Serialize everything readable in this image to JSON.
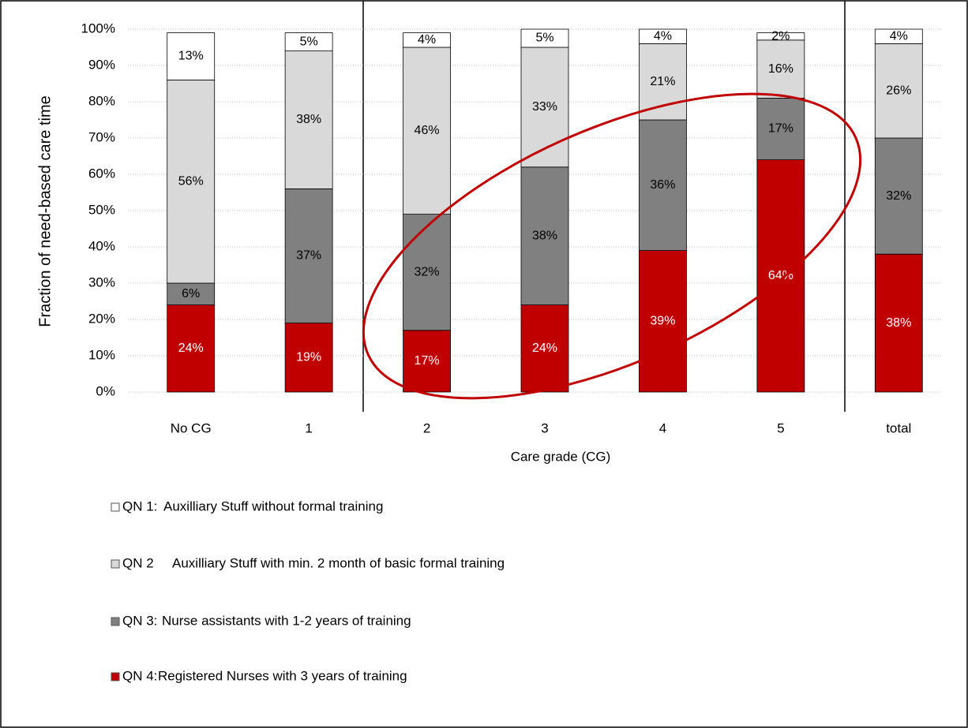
{
  "chart_data": {
    "type": "stacked_bar",
    "y_label": "Fraction of need-based care time",
    "x_label": "Care grade (CG)",
    "categories": [
      "No CG",
      "1",
      "2",
      "3",
      "4",
      "5",
      "total"
    ],
    "series": [
      {
        "name": "QN 4:",
        "description": "Registered Nurses with 3 years of training",
        "color": "#c00000",
        "values": [
          24,
          19,
          17,
          24,
          39,
          64,
          38
        ],
        "value_labels": [
          "24%",
          "19%",
          "17%",
          "24%",
          "39%",
          "64%",
          "38%"
        ]
      },
      {
        "name": "QN 3:",
        "description": "Nurse assistants with 1-2 years of training",
        "color": "#808080",
        "values": [
          6,
          37,
          32,
          38,
          36,
          17,
          32
        ],
        "value_labels": [
          "6%",
          "37%",
          "32%",
          "38%",
          "36%",
          "17%",
          "32%"
        ]
      },
      {
        "name": "QN 2",
        "description": "Auxilliary Stuff with min. 2 month of basic formal training",
        "color": "#d9d9d9",
        "values": [
          56,
          38,
          46,
          33,
          21,
          16,
          26
        ],
        "value_labels": [
          "56%",
          "38%",
          "46%",
          "33%",
          "21%",
          "16%",
          "26%"
        ]
      },
      {
        "name": "QN 1:",
        "description": "Auxilliary Stuff without formal training",
        "color": "#ffffff",
        "values": [
          13,
          5,
          4,
          5,
          4,
          2,
          4
        ],
        "value_labels": [
          "13%",
          "5%",
          "4%",
          "5%",
          "4%",
          "2%",
          "4%"
        ]
      }
    ],
    "ylim": [
      0,
      100
    ],
    "yticks": [
      {
        "value": 0,
        "label": "0%"
      },
      {
        "value": 10,
        "label": "10%"
      },
      {
        "value": 20,
        "label": "20%"
      },
      {
        "value": 30,
        "label": "30%"
      },
      {
        "value": 40,
        "label": "40%"
      },
      {
        "value": 50,
        "label": "50%"
      },
      {
        "value": 60,
        "label": "60%"
      },
      {
        "value": 70,
        "label": "70%"
      },
      {
        "value": 80,
        "label": "80%"
      },
      {
        "value": 90,
        "label": "90%"
      },
      {
        "value": 100,
        "label": "100%"
      }
    ],
    "grid": true
  }
}
